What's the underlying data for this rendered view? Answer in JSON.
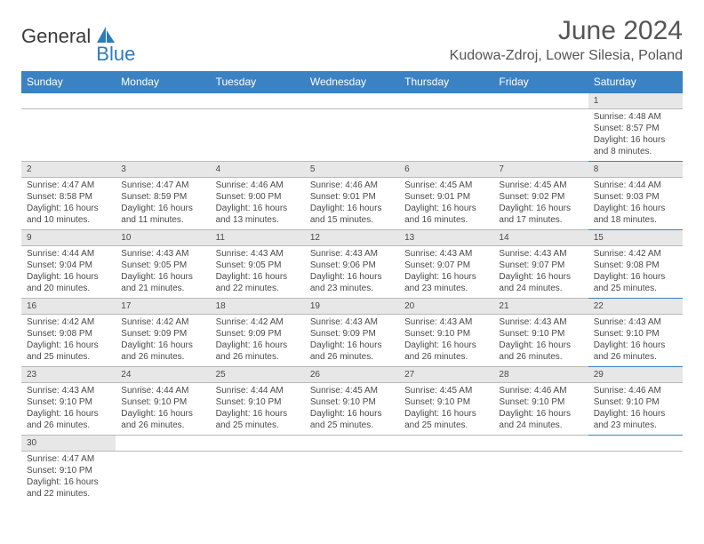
{
  "logo": {
    "text1": "General",
    "text2": "Blue"
  },
  "title": "June 2024",
  "location": "Kudowa-Zdroj, Lower Silesia, Poland",
  "weekdays": [
    "Sunday",
    "Monday",
    "Tuesday",
    "Wednesday",
    "Thursday",
    "Friday",
    "Saturday"
  ],
  "header_bg": "#3b82c4",
  "daynum_bg": "#e7e7e7",
  "weeks": [
    [
      null,
      null,
      null,
      null,
      null,
      null,
      {
        "n": "1",
        "sr": "Sunrise: 4:48 AM",
        "ss": "Sunset: 8:57 PM",
        "dl1": "Daylight: 16 hours",
        "dl2": "and 8 minutes."
      }
    ],
    [
      {
        "n": "2",
        "sr": "Sunrise: 4:47 AM",
        "ss": "Sunset: 8:58 PM",
        "dl1": "Daylight: 16 hours",
        "dl2": "and 10 minutes."
      },
      {
        "n": "3",
        "sr": "Sunrise: 4:47 AM",
        "ss": "Sunset: 8:59 PM",
        "dl1": "Daylight: 16 hours",
        "dl2": "and 11 minutes."
      },
      {
        "n": "4",
        "sr": "Sunrise: 4:46 AM",
        "ss": "Sunset: 9:00 PM",
        "dl1": "Daylight: 16 hours",
        "dl2": "and 13 minutes."
      },
      {
        "n": "5",
        "sr": "Sunrise: 4:46 AM",
        "ss": "Sunset: 9:01 PM",
        "dl1": "Daylight: 16 hours",
        "dl2": "and 15 minutes."
      },
      {
        "n": "6",
        "sr": "Sunrise: 4:45 AM",
        "ss": "Sunset: 9:01 PM",
        "dl1": "Daylight: 16 hours",
        "dl2": "and 16 minutes."
      },
      {
        "n": "7",
        "sr": "Sunrise: 4:45 AM",
        "ss": "Sunset: 9:02 PM",
        "dl1": "Daylight: 16 hours",
        "dl2": "and 17 minutes."
      },
      {
        "n": "8",
        "sr": "Sunrise: 4:44 AM",
        "ss": "Sunset: 9:03 PM",
        "dl1": "Daylight: 16 hours",
        "dl2": "and 18 minutes."
      }
    ],
    [
      {
        "n": "9",
        "sr": "Sunrise: 4:44 AM",
        "ss": "Sunset: 9:04 PM",
        "dl1": "Daylight: 16 hours",
        "dl2": "and 20 minutes."
      },
      {
        "n": "10",
        "sr": "Sunrise: 4:43 AM",
        "ss": "Sunset: 9:05 PM",
        "dl1": "Daylight: 16 hours",
        "dl2": "and 21 minutes."
      },
      {
        "n": "11",
        "sr": "Sunrise: 4:43 AM",
        "ss": "Sunset: 9:05 PM",
        "dl1": "Daylight: 16 hours",
        "dl2": "and 22 minutes."
      },
      {
        "n": "12",
        "sr": "Sunrise: 4:43 AM",
        "ss": "Sunset: 9:06 PM",
        "dl1": "Daylight: 16 hours",
        "dl2": "and 23 minutes."
      },
      {
        "n": "13",
        "sr": "Sunrise: 4:43 AM",
        "ss": "Sunset: 9:07 PM",
        "dl1": "Daylight: 16 hours",
        "dl2": "and 23 minutes."
      },
      {
        "n": "14",
        "sr": "Sunrise: 4:43 AM",
        "ss": "Sunset: 9:07 PM",
        "dl1": "Daylight: 16 hours",
        "dl2": "and 24 minutes."
      },
      {
        "n": "15",
        "sr": "Sunrise: 4:42 AM",
        "ss": "Sunset: 9:08 PM",
        "dl1": "Daylight: 16 hours",
        "dl2": "and 25 minutes."
      }
    ],
    [
      {
        "n": "16",
        "sr": "Sunrise: 4:42 AM",
        "ss": "Sunset: 9:08 PM",
        "dl1": "Daylight: 16 hours",
        "dl2": "and 25 minutes."
      },
      {
        "n": "17",
        "sr": "Sunrise: 4:42 AM",
        "ss": "Sunset: 9:09 PM",
        "dl1": "Daylight: 16 hours",
        "dl2": "and 26 minutes."
      },
      {
        "n": "18",
        "sr": "Sunrise: 4:42 AM",
        "ss": "Sunset: 9:09 PM",
        "dl1": "Daylight: 16 hours",
        "dl2": "and 26 minutes."
      },
      {
        "n": "19",
        "sr": "Sunrise: 4:43 AM",
        "ss": "Sunset: 9:09 PM",
        "dl1": "Daylight: 16 hours",
        "dl2": "and 26 minutes."
      },
      {
        "n": "20",
        "sr": "Sunrise: 4:43 AM",
        "ss": "Sunset: 9:10 PM",
        "dl1": "Daylight: 16 hours",
        "dl2": "and 26 minutes."
      },
      {
        "n": "21",
        "sr": "Sunrise: 4:43 AM",
        "ss": "Sunset: 9:10 PM",
        "dl1": "Daylight: 16 hours",
        "dl2": "and 26 minutes."
      },
      {
        "n": "22",
        "sr": "Sunrise: 4:43 AM",
        "ss": "Sunset: 9:10 PM",
        "dl1": "Daylight: 16 hours",
        "dl2": "and 26 minutes."
      }
    ],
    [
      {
        "n": "23",
        "sr": "Sunrise: 4:43 AM",
        "ss": "Sunset: 9:10 PM",
        "dl1": "Daylight: 16 hours",
        "dl2": "and 26 minutes."
      },
      {
        "n": "24",
        "sr": "Sunrise: 4:44 AM",
        "ss": "Sunset: 9:10 PM",
        "dl1": "Daylight: 16 hours",
        "dl2": "and 26 minutes."
      },
      {
        "n": "25",
        "sr": "Sunrise: 4:44 AM",
        "ss": "Sunset: 9:10 PM",
        "dl1": "Daylight: 16 hours",
        "dl2": "and 25 minutes."
      },
      {
        "n": "26",
        "sr": "Sunrise: 4:45 AM",
        "ss": "Sunset: 9:10 PM",
        "dl1": "Daylight: 16 hours",
        "dl2": "and 25 minutes."
      },
      {
        "n": "27",
        "sr": "Sunrise: 4:45 AM",
        "ss": "Sunset: 9:10 PM",
        "dl1": "Daylight: 16 hours",
        "dl2": "and 25 minutes."
      },
      {
        "n": "28",
        "sr": "Sunrise: 4:46 AM",
        "ss": "Sunset: 9:10 PM",
        "dl1": "Daylight: 16 hours",
        "dl2": "and 24 minutes."
      },
      {
        "n": "29",
        "sr": "Sunrise: 4:46 AM",
        "ss": "Sunset: 9:10 PM",
        "dl1": "Daylight: 16 hours",
        "dl2": "and 23 minutes."
      }
    ],
    [
      {
        "n": "30",
        "sr": "Sunrise: 4:47 AM",
        "ss": "Sunset: 9:10 PM",
        "dl1": "Daylight: 16 hours",
        "dl2": "and 22 minutes."
      },
      null,
      null,
      null,
      null,
      null,
      null
    ]
  ]
}
